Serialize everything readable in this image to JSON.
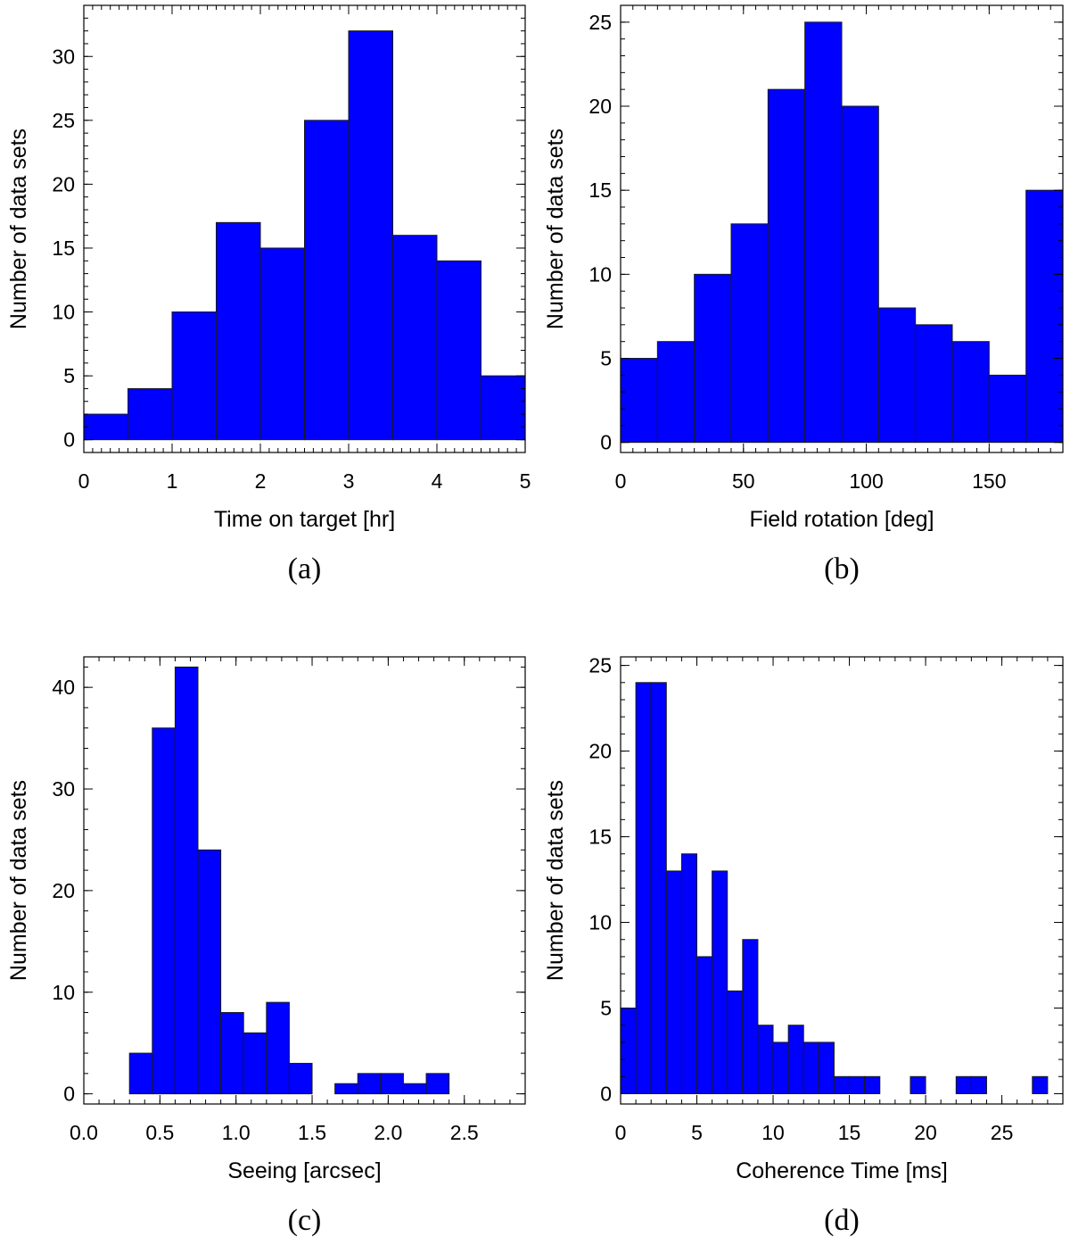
{
  "chart_data": [
    {
      "type": "bar",
      "panel_label": "(a)",
      "xlabel": "Time on target [hr]",
      "ylabel": "Number of data sets",
      "xlim": [
        0,
        5
      ],
      "ylim": [
        -1,
        34
      ],
      "xticks": [
        0,
        1,
        2,
        3,
        4,
        5
      ],
      "xtick_labels": [
        "0",
        "1",
        "2",
        "3",
        "4",
        "5"
      ],
      "yticks": [
        0,
        5,
        10,
        15,
        20,
        25,
        30
      ],
      "ytick_labels": [
        "0",
        "5",
        "10",
        "15",
        "20",
        "25",
        "30"
      ],
      "x_minor_step": 0.1,
      "y_minor_step": 1,
      "bin_edges": [
        0,
        0.5,
        1.0,
        1.5,
        2.0,
        2.5,
        3.0,
        3.5,
        4.0,
        4.5,
        5.0
      ],
      "values": [
        2,
        4,
        10,
        17,
        15,
        25,
        32,
        16,
        14,
        5
      ],
      "color": "#0000ff"
    },
    {
      "type": "bar",
      "panel_label": "(b)",
      "xlabel": "Field rotation [deg]",
      "ylabel": "Number of data sets",
      "xlim": [
        0,
        180
      ],
      "ylim": [
        -0.6,
        26
      ],
      "xticks": [
        0,
        50,
        100,
        150
      ],
      "xtick_labels": [
        "0",
        "50",
        "100",
        "150"
      ],
      "yticks": [
        0,
        5,
        10,
        15,
        20,
        25
      ],
      "ytick_labels": [
        "0",
        "5",
        "10",
        "15",
        "20",
        "25"
      ],
      "x_minor_step": 5,
      "y_minor_step": 1,
      "bin_edges": [
        0,
        15,
        30,
        45,
        60,
        75,
        90,
        105,
        120,
        135,
        150,
        165,
        180
      ],
      "values": [
        5,
        6,
        10,
        13,
        21,
        25,
        20,
        8,
        7,
        6,
        4,
        15
      ],
      "color": "#0000ff"
    },
    {
      "type": "bar",
      "panel_label": "(c)",
      "xlabel": "Seeing [arcsec]",
      "ylabel": "Number of data sets",
      "xlim": [
        0,
        2.9
      ],
      "ylim": [
        -1,
        43
      ],
      "xticks": [
        0.0,
        0.5,
        1.0,
        1.5,
        2.0,
        2.5
      ],
      "xtick_labels": [
        "0.0",
        "0.5",
        "1.0",
        "1.5",
        "2.0",
        "2.5"
      ],
      "yticks": [
        0,
        10,
        20,
        30,
        40
      ],
      "ytick_labels": [
        "0",
        "10",
        "20",
        "30",
        "40"
      ],
      "x_minor_step": 0.1,
      "y_minor_step": 2,
      "bin_edges": [
        0.3,
        0.45,
        0.6,
        0.75,
        0.9,
        1.05,
        1.2,
        1.35,
        1.5,
        1.65,
        1.8,
        1.95,
        2.1,
        2.25,
        2.4
      ],
      "values": [
        4,
        36,
        42,
        24,
        8,
        6,
        9,
        3,
        0,
        1,
        2,
        2,
        1,
        2
      ],
      "color": "#0000ff"
    },
    {
      "type": "bar",
      "panel_label": "(d)",
      "xlabel": "Coherence Time [ms]",
      "ylabel": "Number of data sets",
      "xlim": [
        0,
        29
      ],
      "ylim": [
        -0.6,
        25.5
      ],
      "xticks": [
        0,
        5,
        10,
        15,
        20,
        25
      ],
      "xtick_labels": [
        "0",
        "5",
        "10",
        "15",
        "20",
        "25"
      ],
      "yticks": [
        0,
        5,
        10,
        15,
        20,
        25
      ],
      "ytick_labels": [
        "0",
        "5",
        "10",
        "15",
        "20",
        "25"
      ],
      "x_minor_step": 1,
      "y_minor_step": 1,
      "bin_edges": [
        0,
        1,
        2,
        3,
        4,
        5,
        6,
        7,
        8,
        9,
        10,
        11,
        12,
        13,
        14,
        15,
        16,
        17,
        18,
        19,
        20,
        21,
        22,
        23,
        24,
        25,
        26,
        27,
        28
      ],
      "values": [
        5,
        24,
        24,
        13,
        14,
        8,
        13,
        6,
        9,
        4,
        3,
        4,
        3,
        3,
        1,
        1,
        1,
        0,
        0,
        1,
        0,
        0,
        1,
        1,
        0,
        0,
        0,
        1
      ],
      "color": "#0000ff"
    }
  ]
}
